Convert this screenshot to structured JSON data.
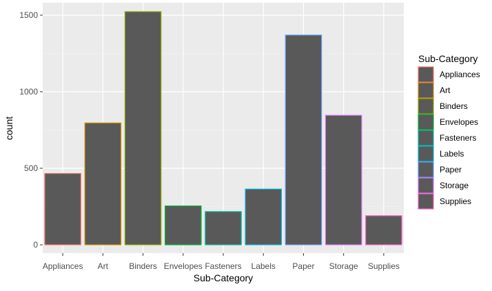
{
  "chart_data": {
    "type": "bar",
    "categories": [
      "Appliances",
      "Art",
      "Binders",
      "Envelopes",
      "Fasteners",
      "Labels",
      "Paper",
      "Storage",
      "Supplies"
    ],
    "values": [
      466,
      796,
      1523,
      254,
      217,
      364,
      1370,
      846,
      190
    ],
    "xlabel": "Sub-Category",
    "ylabel": "count",
    "ylim": [
      0,
      1580
    ],
    "yticks": [
      0,
      500,
      1000,
      1500
    ],
    "grid": true,
    "bar_fill": "#595959",
    "panel_background": "#ebebeb",
    "outline_colors": [
      "#f8766d",
      "#d39200",
      "#93aa00",
      "#00ba38",
      "#00c19f",
      "#00b9e3",
      "#619cff",
      "#db72fb",
      "#ff61c3"
    ],
    "legend": {
      "title": "Sub-Category",
      "position": "right",
      "entries": [
        "Appliances",
        "Art",
        "Binders",
        "Envelopes",
        "Fasteners",
        "Labels",
        "Paper",
        "Storage",
        "Supplies"
      ]
    }
  }
}
